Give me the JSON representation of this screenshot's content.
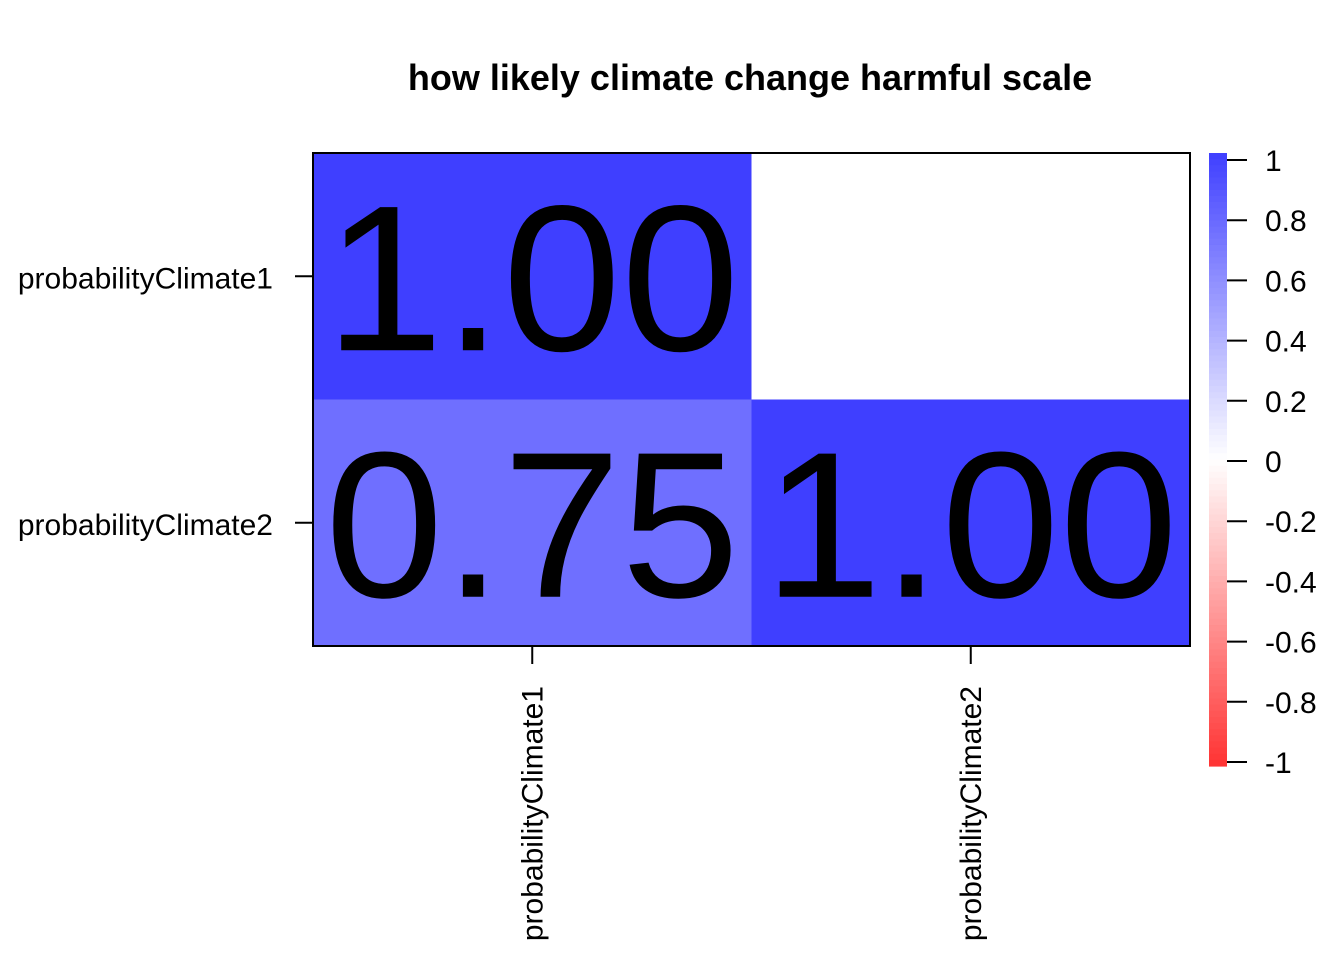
{
  "chart_data": {
    "type": "heatmap",
    "title": "how likely climate change harmful scale",
    "rows": [
      "probabilityClimate1",
      "probabilityClimate2"
    ],
    "columns": [
      "probabilityClimate1",
      "probabilityClimate2"
    ],
    "cells": [
      {
        "row": 0,
        "col": 0,
        "value": 1.0,
        "label": "1.00"
      },
      {
        "row": 1,
        "col": 0,
        "value": 0.75,
        "label": "0.75"
      },
      {
        "row": 1,
        "col": 1,
        "value": 1.0,
        "label": "1.00"
      }
    ],
    "scale": {
      "min": -1,
      "max": 1,
      "low_color": "#ff3333",
      "mid_color": "#ffffff",
      "high_color": "#3f3fff",
      "ticks": [
        1,
        0.8,
        0.6,
        0.4,
        0.2,
        0,
        -0.2,
        -0.4,
        -0.6,
        -0.8,
        -1
      ],
      "tick_labels": [
        "1",
        "0.8",
        "0.6",
        "0.4",
        "0.2",
        "0",
        "-0.2",
        "-0.4",
        "-0.6",
        "-0.8",
        "-1"
      ]
    }
  }
}
